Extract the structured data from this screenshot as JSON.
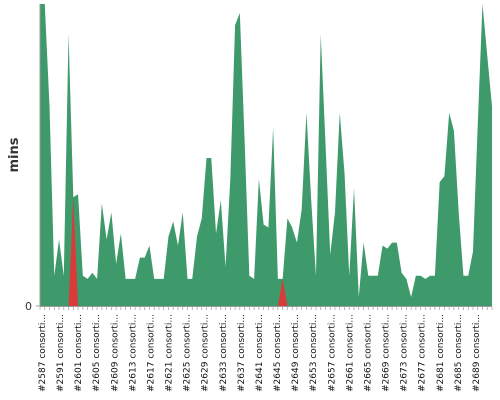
{
  "chart_data": {
    "type": "area",
    "ylabel": "mins",
    "ylim": [
      0,
      100
    ],
    "y_ticks": [
      {
        "value": 0,
        "label": "0"
      }
    ],
    "grid": false,
    "legend": "none",
    "colors": {
      "area": "#3f9a6b",
      "highlight": "#d93a3a",
      "axis": "#9a9a9a"
    },
    "values": [
      100,
      100,
      66,
      10,
      22,
      10,
      90,
      36,
      37,
      10,
      9,
      11,
      9,
      34,
      22,
      31,
      14,
      24,
      9,
      9,
      9,
      16,
      16,
      20,
      9,
      9,
      9,
      23,
      28,
      20,
      31,
      9,
      9,
      23,
      29,
      49,
      49,
      24,
      35,
      13,
      42,
      93,
      97,
      55,
      10,
      9,
      42,
      27,
      26,
      59,
      9,
      9,
      29,
      26,
      21,
      32,
      64,
      35,
      10,
      90,
      54,
      17,
      31,
      64,
      44,
      10,
      39,
      3,
      21,
      10,
      10,
      10,
      20,
      19,
      21,
      21,
      11,
      9,
      3,
      10,
      10,
      9,
      10,
      10,
      41,
      43,
      64,
      58,
      31,
      10,
      10,
      18,
      60,
      100,
      83,
      66
    ],
    "highlights": [
      7,
      51,
      121
    ],
    "x_labels": [
      "#2587 consorti...",
      "#2591 consorti...",
      "#2601 consorti...",
      "#2605 consorti...",
      "#2609 consorti...",
      "#2613 consorti...",
      "#2617 consorti...",
      "#2621 consorti...",
      "#2625 consorti...",
      "#2629 consorti...",
      "#2633 consorti...",
      "#2637 consorti...",
      "#2641 consorti...",
      "#2645 consorti...",
      "#2649 consorti...",
      "#2653 consorti...",
      "#2657 consorti...",
      "#2661 consorti...",
      "#2665 consorti...",
      "#2669 consorti...",
      "#2673 consorti...",
      "#2677 consorti...",
      "#2681 consorti...",
      "#2685 consorti...",
      "#2689 consorti..."
    ]
  }
}
